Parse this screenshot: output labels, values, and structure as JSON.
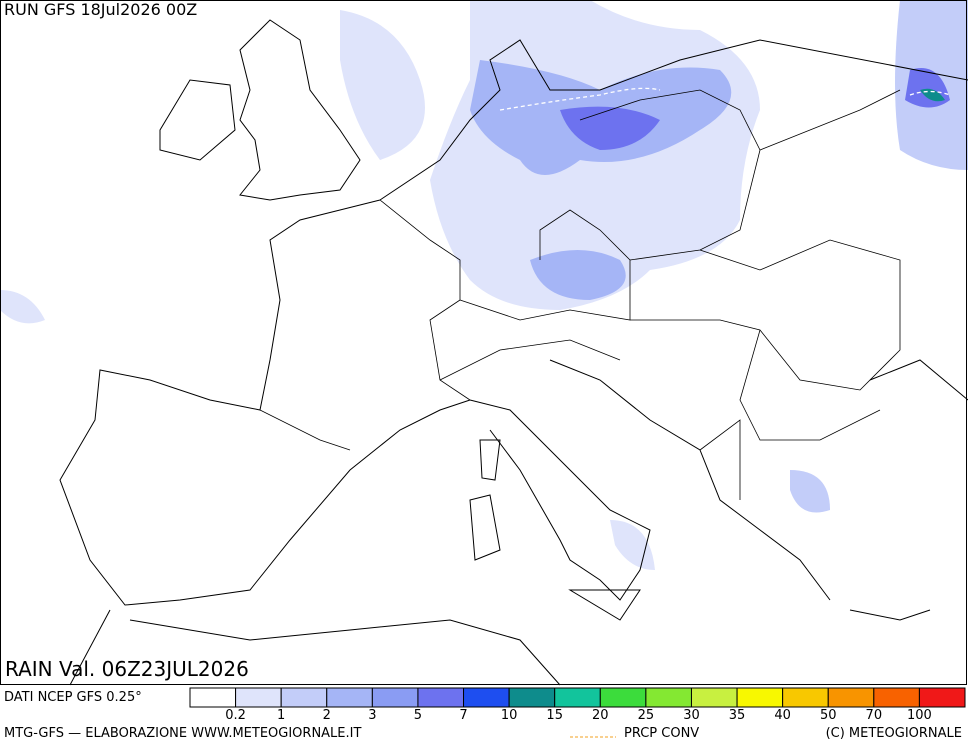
{
  "header": {
    "run": "RUN GFS 18Jul2026 00Z"
  },
  "map": {
    "title": "RAIN Val. 06Z23JUL2026"
  },
  "legend": {
    "source": "DATI NCEP GFS 0.25°",
    "colors": [
      "#ffffff",
      "#dfe4fb",
      "#c3cdf9",
      "#a5b5f6",
      "#8a9cf3",
      "#6d72ef",
      "#1e4ef0",
      "#0e8c8c",
      "#12c49c",
      "#3cdc3c",
      "#84e832",
      "#c8f040",
      "#f8f800",
      "#f8c800",
      "#f89400",
      "#f86200",
      "#f01818"
    ],
    "ticks": [
      "0.2",
      "1",
      "2",
      "3",
      "5",
      "7",
      "10",
      "15",
      "20",
      "25",
      "30",
      "35",
      "40",
      "50",
      "70",
      "100"
    ],
    "conv_label": "PRCP CONV"
  },
  "footer": {
    "left": "MTG-GFS — ELABORAZIONE WWW.METEOGIORNALE.IT",
    "right": "(C) METEOGIORNALE"
  }
}
